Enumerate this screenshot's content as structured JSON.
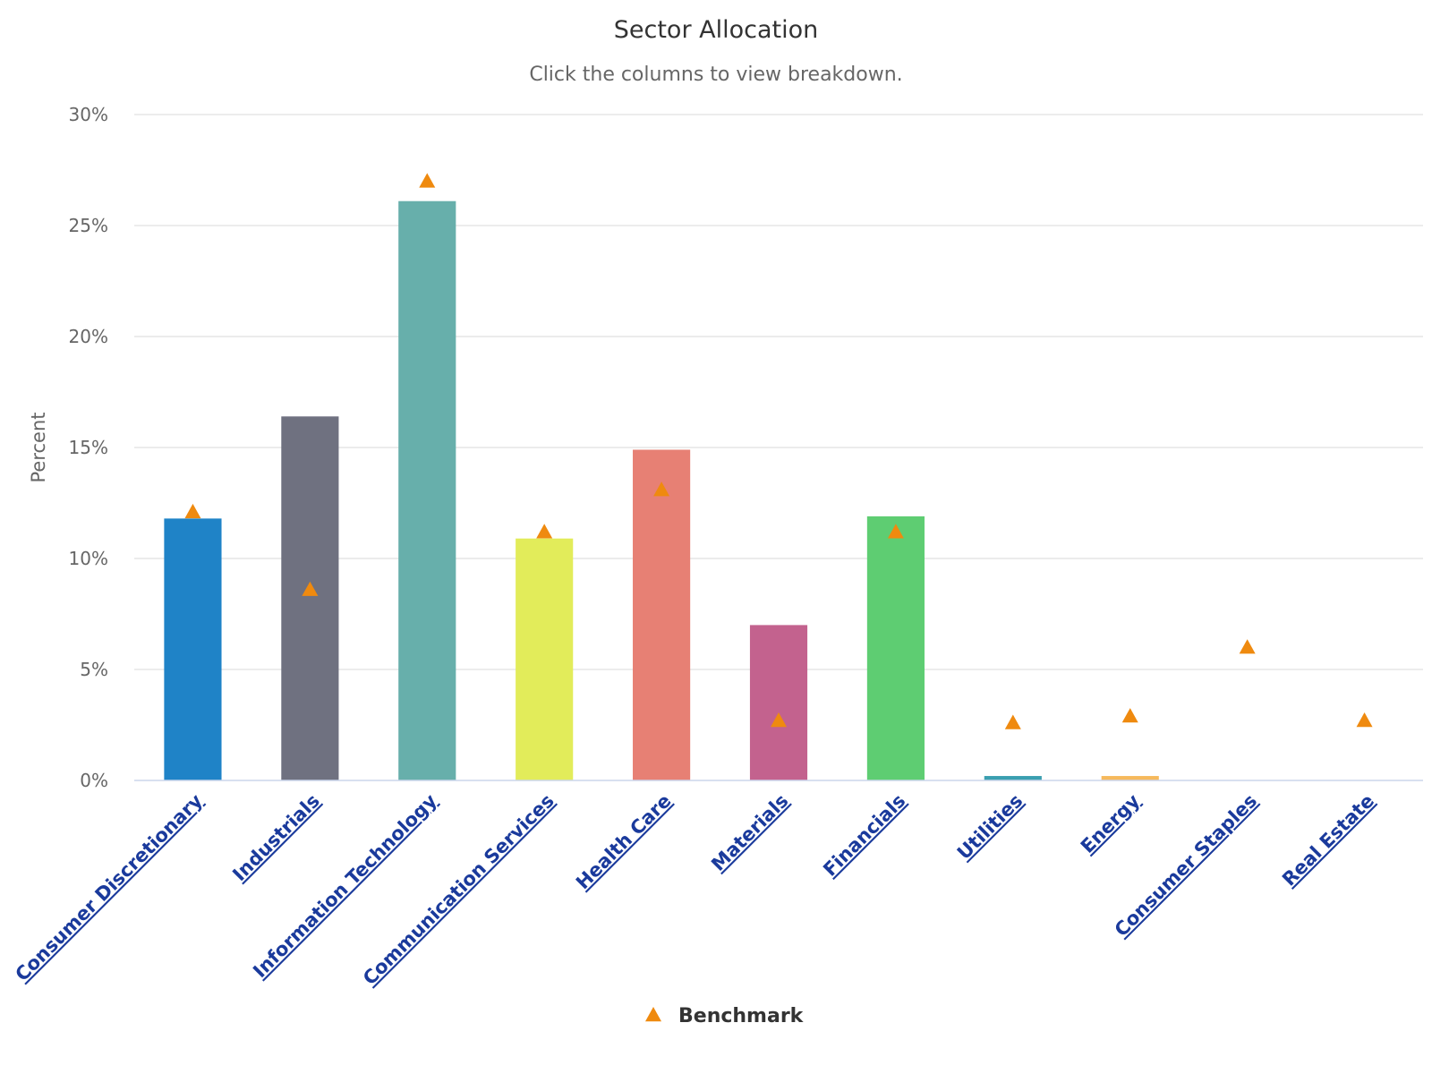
{
  "chart_data": {
    "type": "bar",
    "title": "Sector Allocation",
    "subtitle": "Click the columns to view breakdown.",
    "ylabel": "Percent",
    "ylim": [
      0,
      30
    ],
    "yticks": [
      0,
      5,
      10,
      15,
      20,
      25,
      30
    ],
    "ytick_labels": [
      "0%",
      "5%",
      "10%",
      "15%",
      "20%",
      "25%",
      "30%"
    ],
    "grid": true,
    "categories": [
      "Consumer Discretionary",
      "Industrials",
      "Information Technology",
      "Communication Services",
      "Health Care",
      "Materials",
      "Financials",
      "Utilities",
      "Energy",
      "Consumer Staples",
      "Real Estate"
    ],
    "series": [
      {
        "values": [
          11.8,
          16.4,
          26.1,
          10.9,
          14.9,
          7.0,
          11.9,
          0.2,
          0.2,
          0,
          0
        ],
        "colors": [
          "#1f83c7",
          "#6f7180",
          "#67afab",
          "#e2ec5a",
          "#e78074",
          "#c3628e",
          "#5ecd72",
          "#3a9fb0",
          "#f6b95c",
          "#7f8fa6",
          "#7f8fa6"
        ]
      },
      {
        "name": "Benchmark",
        "type": "scatter",
        "marker": "triangle",
        "color": "#ef8a0f",
        "values": [
          12.1,
          8.6,
          27.0,
          11.2,
          13.1,
          2.7,
          11.2,
          2.6,
          2.9,
          6.0,
          2.7
        ]
      }
    ],
    "legend": {
      "position": "bottom-center",
      "items": [
        "Benchmark"
      ]
    }
  }
}
